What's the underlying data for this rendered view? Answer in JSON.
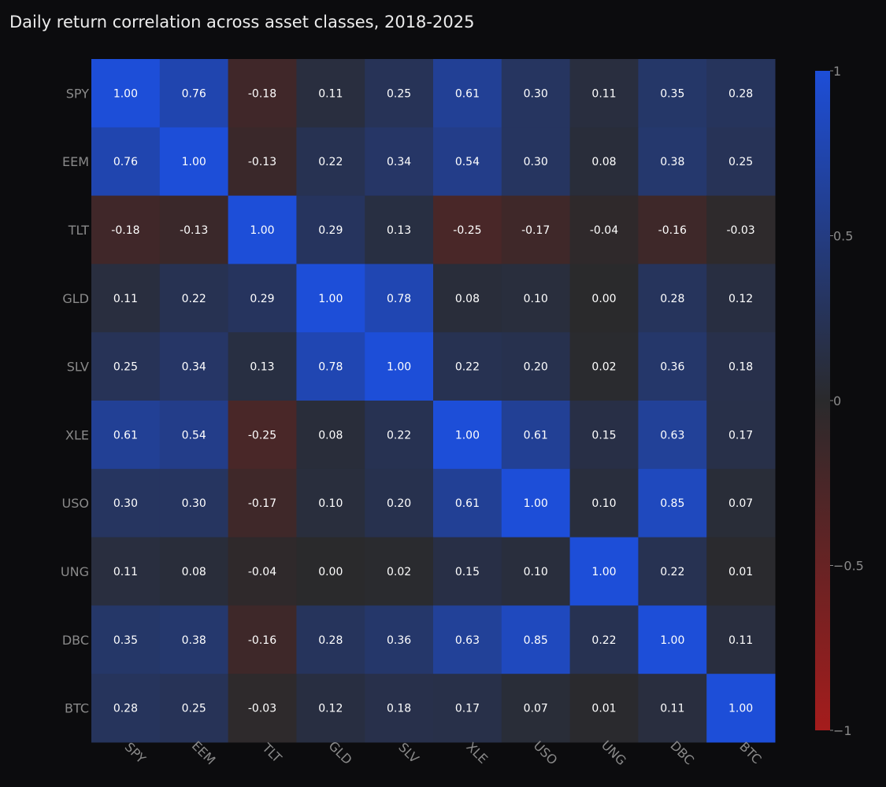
{
  "title": "Daily return correlation across asset classes, 2018-2025",
  "chart_data": {
    "type": "heatmap",
    "title": "Daily return correlation across asset classes, 2018-2025",
    "x_categories": [
      "SPY",
      "EEM",
      "TLT",
      "GLD",
      "SLV",
      "XLE",
      "USO",
      "UNG",
      "DBC",
      "BTC"
    ],
    "y_categories": [
      "SPY",
      "EEM",
      "TLT",
      "GLD",
      "SLV",
      "XLE",
      "USO",
      "UNG",
      "DBC",
      "BTC"
    ],
    "values": [
      [
        1.0,
        0.76,
        -0.18,
        0.11,
        0.25,
        0.61,
        0.3,
        0.11,
        0.35,
        0.28
      ],
      [
        0.76,
        1.0,
        -0.13,
        0.22,
        0.34,
        0.54,
        0.3,
        0.08,
        0.38,
        0.25
      ],
      [
        -0.18,
        -0.13,
        1.0,
        0.29,
        0.13,
        -0.25,
        -0.17,
        -0.04,
        -0.16,
        -0.03
      ],
      [
        0.11,
        0.22,
        0.29,
        1.0,
        0.78,
        0.08,
        0.1,
        0.0,
        0.28,
        0.12
      ],
      [
        0.25,
        0.34,
        0.13,
        0.78,
        1.0,
        0.22,
        0.2,
        0.02,
        0.36,
        0.18
      ],
      [
        0.61,
        0.54,
        -0.25,
        0.08,
        0.22,
        1.0,
        0.61,
        0.15,
        0.63,
        0.17
      ],
      [
        0.3,
        0.3,
        -0.17,
        0.1,
        0.2,
        0.61,
        1.0,
        0.1,
        0.85,
        0.07
      ],
      [
        0.11,
        0.08,
        -0.04,
        0.0,
        0.02,
        0.15,
        0.1,
        1.0,
        0.22,
        0.01
      ],
      [
        0.35,
        0.38,
        -0.16,
        0.28,
        0.36,
        0.63,
        0.85,
        0.22,
        1.0,
        0.11
      ],
      [
        0.28,
        0.25,
        -0.03,
        0.12,
        0.18,
        0.17,
        0.07,
        0.01,
        0.11,
        1.0
      ]
    ],
    "zmin": -1,
    "zmax": 1,
    "colorscale": [
      [
        -1,
        "#a51c1c"
      ],
      [
        0,
        "#2a2a2c"
      ],
      [
        1,
        "#1d4ed8"
      ]
    ],
    "colorbar": {
      "ticks": [
        1,
        0.5,
        0,
        -0.5,
        -1
      ],
      "tick_labels": [
        "1",
        "0.5",
        "0",
        "−0.5",
        "−1"
      ]
    },
    "value_format": "0.00",
    "xlabel": "",
    "ylabel": ""
  }
}
